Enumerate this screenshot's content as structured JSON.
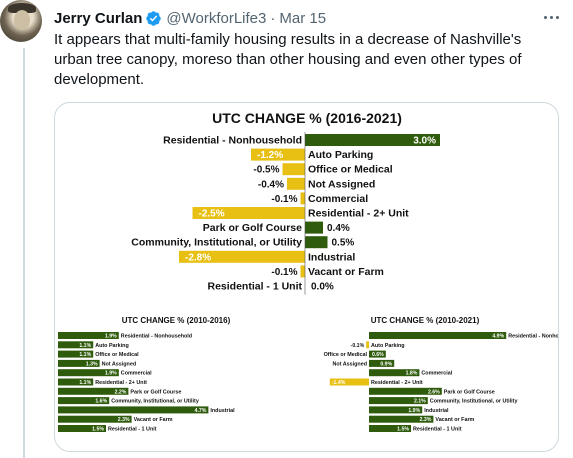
{
  "tweet": {
    "author_name": "Jerry Curlan",
    "handle": "@WorkforLife3",
    "separator": "·",
    "date": "Mar 15",
    "text": "It appears that multi-family housing results in a decrease of Nashville's urban tree canopy, moreso than other housing and even other types of development."
  },
  "colors": {
    "positive": "#2e5b0c",
    "negative": "#e8bf13",
    "verified": "#1d9bf0",
    "text_secondary": "#536471"
  },
  "icons": [
    "verified-badge-icon",
    "more-options-icon"
  ],
  "chart_data": [
    {
      "type": "bar",
      "title": "UTC CHANGE % (2016-2021)",
      "categories": [
        "Residential - Nonhousehold",
        "Auto Parking",
        "Office or Medical",
        "Not Assigned",
        "Commercial",
        "Residential - 2+ Unit",
        "Park or Golf Course",
        "Community, Institutional, or Utility",
        "Industrial",
        "Vacant or Farm",
        "Residential - 1 Unit"
      ],
      "values": [
        3.0,
        -1.2,
        -0.5,
        -0.4,
        -0.1,
        -2.5,
        0.4,
        0.5,
        -2.8,
        -0.1,
        0.0
      ],
      "labels": [
        "3.0%",
        "-1.2%",
        "-0.5%",
        "-0.4%",
        "-0.1%",
        "-2.5%",
        "0.4%",
        "0.5%",
        "-2.8%",
        "-0.1%",
        "0.0%"
      ],
      "xlim": [
        -3.0,
        3.0
      ],
      "grid": false
    },
    {
      "type": "bar",
      "title": "UTC CHANGE % (2010-2016)",
      "categories": [
        "Residential - Nonhousehold",
        "Auto Parking",
        "Office or Medical",
        "Not Assigned",
        "Commercial",
        "Residential - 2+ Unit",
        "Park or Golf Course",
        "Community, Institutional, or Utility",
        "Industrial",
        "Vacant or Farm",
        "Residential - 1 Unit"
      ],
      "values": [
        1.9,
        1.1,
        1.1,
        1.3,
        1.9,
        1.1,
        2.2,
        1.6,
        4.7,
        2.3,
        1.5
      ],
      "labels": [
        "1.9%",
        "1.1%",
        "1.1%",
        "1.3%",
        "1.9%",
        "1.1%",
        "2.2%",
        "1.6%",
        "4.7%",
        "2.3%",
        "1.5%"
      ],
      "xlim": [
        0,
        4.7
      ],
      "grid": false
    },
    {
      "type": "bar",
      "title": "UTC CHANGE % (2010-2021)",
      "categories": [
        "Residential - Nonhousehold",
        "Auto Parking",
        "Office or Medical",
        "Not Assigned",
        "Commercial",
        "Residential - 2+ Unit",
        "Park or Golf Course",
        "Community, Institutional, or Utility",
        "Industrial",
        "Vacant or Farm",
        "Residential - 1 Unit"
      ],
      "values": [
        4.9,
        -0.1,
        0.6,
        0.9,
        1.8,
        -1.4,
        2.6,
        2.1,
        1.9,
        2.3,
        1.5
      ],
      "labels": [
        "4.9%",
        "-0.1%",
        "0.6%",
        "0.9%",
        "1.8%",
        "-1.4%",
        "2.6%",
        "2.1%",
        "1.9%",
        "2.3%",
        "1.5%"
      ],
      "xlim": [
        -1.4,
        4.9
      ],
      "grid": false
    }
  ]
}
